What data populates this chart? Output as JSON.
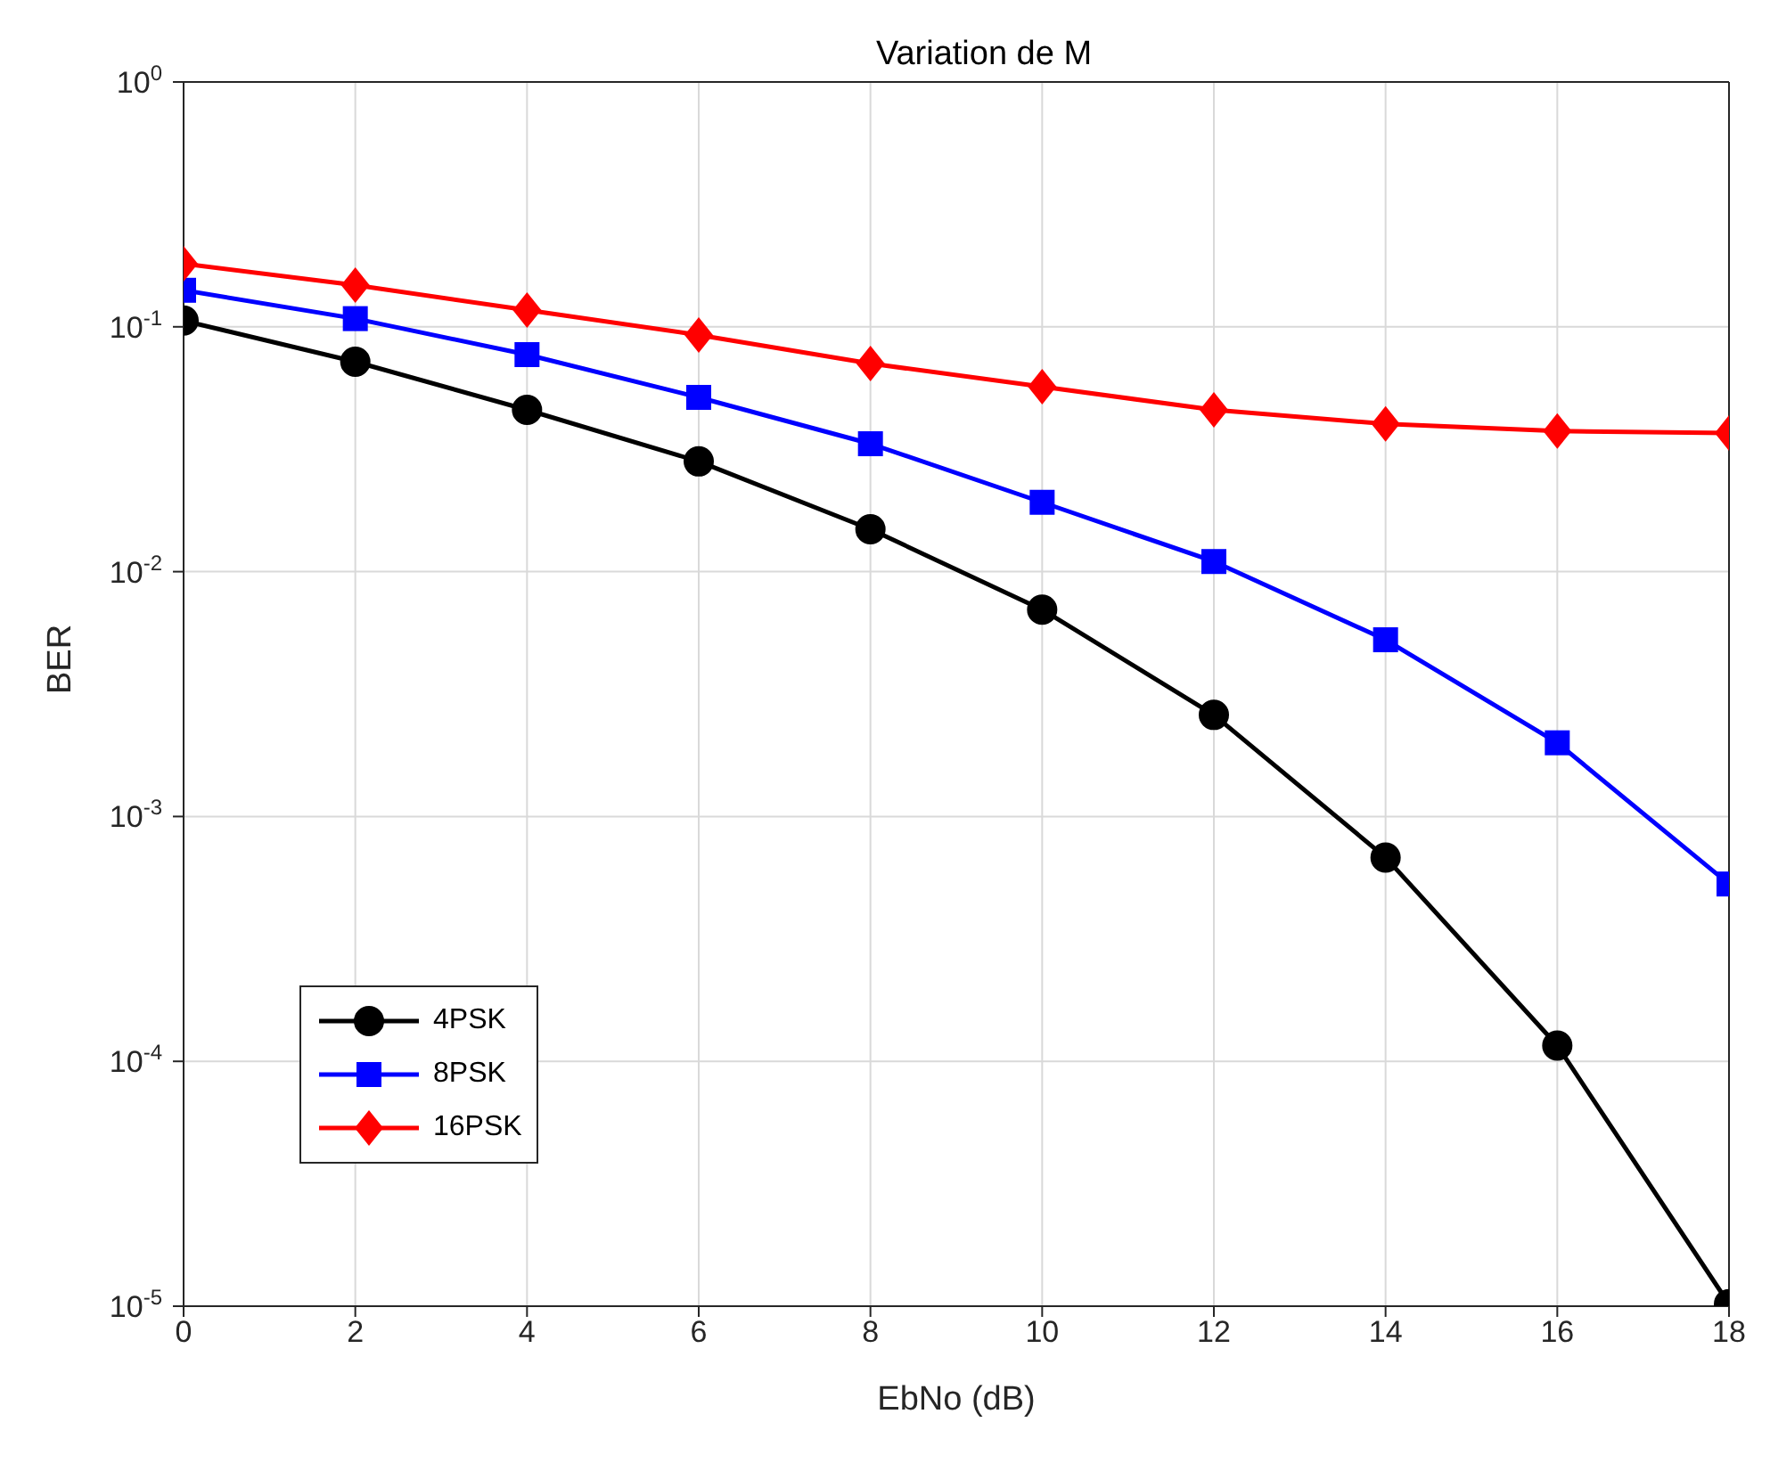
{
  "chart_data": {
    "type": "line",
    "title": "Variation de M",
    "xlabel": "EbNo (dB)",
    "ylabel": "BER",
    "x": [
      0,
      2,
      4,
      6,
      8,
      10,
      12,
      14,
      16,
      18
    ],
    "series": [
      {
        "name": "4PSK",
        "color": "#000000",
        "marker": "circle",
        "values": [
          0.106,
          0.072,
          0.0458,
          0.0282,
          0.0149,
          0.007,
          0.0026,
          0.00068,
          0.000116,
          1.02e-05
        ]
      },
      {
        "name": "8PSK",
        "color": "#0000ff",
        "marker": "square",
        "values": [
          0.141,
          0.108,
          0.077,
          0.0515,
          0.0333,
          0.0192,
          0.011,
          0.00527,
          0.002,
          0.00053
        ]
      },
      {
        "name": "16PSK",
        "color": "#ff0000",
        "marker": "diamond",
        "values": [
          0.181,
          0.148,
          0.117,
          0.0926,
          0.0708,
          0.0569,
          0.0458,
          0.0401,
          0.0375,
          0.0368
        ]
      }
    ],
    "xlim": [
      0,
      18
    ],
    "xticks": [
      0,
      2,
      4,
      6,
      8,
      10,
      12,
      14,
      16,
      18
    ],
    "ylim": [
      1e-05,
      1
    ],
    "yticks": [
      {
        "value": 1e-05,
        "label": "10$^{-5}$"
      },
      {
        "value": 0.0001,
        "label": "10$^{-4}$"
      },
      {
        "value": 0.001,
        "label": "10$^{-3}$"
      },
      {
        "value": 0.01,
        "label": "10$^{-2}$"
      },
      {
        "value": 0.1,
        "label": "10$^{-1}$"
      },
      {
        "value": 1,
        "label": "10$^{0}$"
      }
    ],
    "log": true,
    "grid": true,
    "legend": "bottom left",
    "line_style": "solid"
  }
}
